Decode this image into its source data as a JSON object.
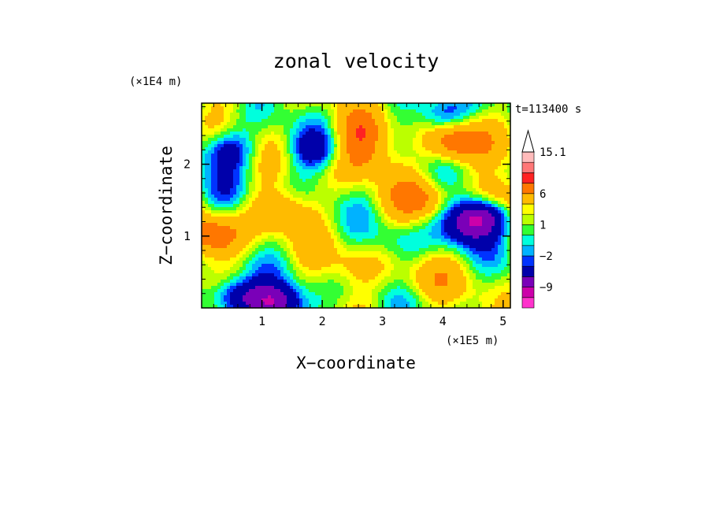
{
  "chart_data": {
    "type": "heatmap",
    "title": "zonal velocity",
    "xlabel": "X−coordinate",
    "ylabel": "Z−coordinate",
    "x_unit": "(×1E5 m)",
    "y_unit": "(×1E4 m)",
    "time_label": "t=113400 s",
    "xlim": [
      0,
      5.12
    ],
    "ylim": [
      0,
      2.85
    ],
    "x_ticks": [
      1,
      2,
      3,
      4,
      5
    ],
    "y_ticks": [
      1,
      2
    ],
    "colorbar": {
      "levels": [
        -15,
        -12,
        -9,
        -6,
        -3,
        -2,
        -1,
        0,
        1,
        2,
        3,
        6,
        9,
        12,
        15.1
      ],
      "colors": [
        "#ff33cc",
        "#cc00aa",
        "#7a00b8",
        "#0000aa",
        "#0033ff",
        "#00b2ff",
        "#00ffdd",
        "#33ff33",
        "#bbff00",
        "#ffff00",
        "#ffbb00",
        "#ff7700",
        "#ff2222",
        "#ff7777",
        "#ffbbbb"
      ],
      "tick_labels": [
        "15.1",
        "6",
        "1",
        "−2",
        "−9"
      ],
      "tick_values": [
        15.1,
        6,
        1,
        -2,
        -9
      ],
      "extend": "max"
    },
    "field_features": [
      {
        "x": 0.45,
        "z": 2.2,
        "value": -6
      },
      {
        "x": 0.55,
        "z": 0.15,
        "value": -8
      },
      {
        "x": 1.25,
        "z": 0.05,
        "value": -10
      },
      {
        "x": 1.9,
        "z": 2.2,
        "value": -5
      },
      {
        "x": 2.7,
        "z": 2.1,
        "value": 4
      },
      {
        "x": 3.6,
        "z": 1.5,
        "value": 5
      },
      {
        "x": 4.2,
        "z": 2.3,
        "value": 8
      },
      {
        "x": 4.3,
        "z": 1.0,
        "value": -3
      },
      {
        "x": 4.45,
        "z": 1.25,
        "value": -8
      },
      {
        "x": 4.8,
        "z": 1.35,
        "value": -7
      },
      {
        "x": 4.95,
        "z": 1.5,
        "value": 7
      },
      {
        "x": 0.2,
        "z": 1.0,
        "value": 8
      },
      {
        "x": 2.5,
        "z": 0.6,
        "value": 2
      },
      {
        "x": 3.7,
        "z": 0.4,
        "value": 2
      },
      {
        "x": 3.2,
        "z": 0.9,
        "value": -2
      },
      {
        "x": 1.4,
        "z": 1.35,
        "value": 4
      },
      {
        "x": 4.0,
        "z": 2.7,
        "value": -6
      },
      {
        "x": 2.7,
        "z": 2.45,
        "value": 6
      },
      {
        "x": 0.35,
        "z": 1.6,
        "value": -2
      }
    ]
  }
}
